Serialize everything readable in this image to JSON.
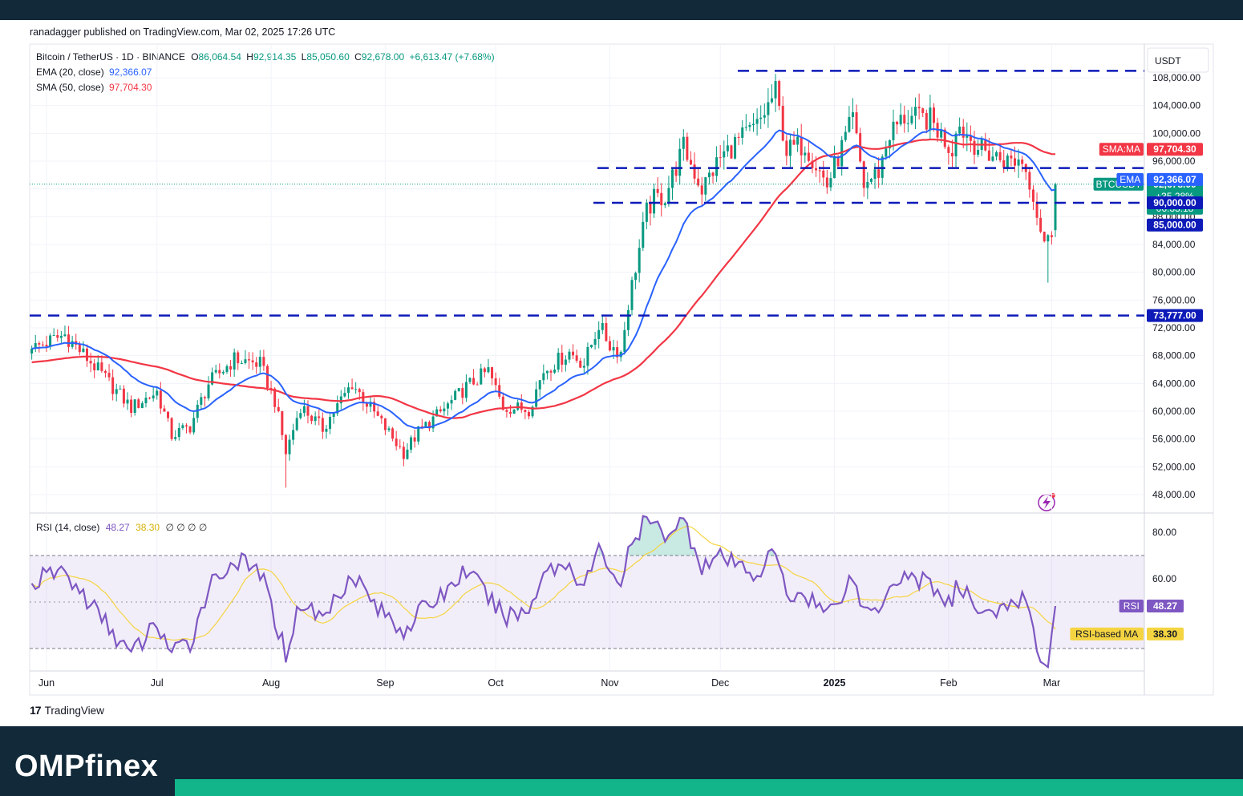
{
  "header": {
    "published": "ranadagger published on TradingView.com, Mar 02, 2025 17:26 UTC"
  },
  "legend": {
    "symbol": "Bitcoin / TetherUS · 1D · BINANCE",
    "o_label": "O",
    "o_value": "86,064.54",
    "h_label": "H",
    "h_value": "92,914.35",
    "l_label": "L",
    "l_value": "85,050.60",
    "c_label": "C",
    "c_value": "92,678.00",
    "change": "+6,613.47 (+7.68%)",
    "ema_label": "EMA (20, close)",
    "ema_value": "92,366.07",
    "sma_label": "SMA (50, close)",
    "sma_value": "97,704.30"
  },
  "rsi_legend": {
    "label": "RSI (14, close)",
    "value": "48.27",
    "ma_value": "38.30",
    "extras": "∅ ∅ ∅ ∅"
  },
  "currency": "USDT",
  "footer": {
    "tradingview": "TradingView"
  },
  "brand": {
    "name": "OMPfinex"
  },
  "colors": {
    "up": "#089981",
    "down": "#f23645",
    "ema": "#2962ff",
    "sma": "#f23645",
    "rsi": "#7e57c2",
    "rsi_ma": "#f5d442",
    "level_line": "#0d1ab8",
    "header_bg": "#112938",
    "brand_green": "#12b58a"
  },
  "chart_data": [
    {
      "type": "candlestick",
      "title": "Bitcoin / TetherUS · 1D · BINANCE",
      "ylim": [
        45000,
        110000
      ],
      "y_ticks": [
        "108,000.00",
        "104,000.00",
        "100,000.00",
        "96,000.00",
        "92,000.00",
        "88,000.00",
        "84,000.00",
        "80,000.00",
        "76,000.00",
        "72,000.00",
        "68,000.00",
        "64,000.00",
        "60,000.00",
        "56,000.00",
        "52,000.00",
        "48,000.00"
      ],
      "y_tick_values": [
        108000,
        104000,
        100000,
        96000,
        92000,
        88000,
        84000,
        80000,
        76000,
        72000,
        68000,
        64000,
        60000,
        56000,
        52000,
        48000
      ],
      "x_ticks": [
        "Jun",
        "Jul",
        "Aug",
        "Sep",
        "Oct",
        "Nov",
        "Dec",
        "2025",
        "Feb",
        "Mar"
      ],
      "close_anchors": [
        {
          "date": "2024-05-28",
          "close": 69000
        },
        {
          "date": "2024-06-06",
          "close": 71000
        },
        {
          "date": "2024-06-14",
          "close": 66500
        },
        {
          "date": "2024-06-24",
          "close": 60500
        },
        {
          "date": "2024-07-01",
          "close": 62800
        },
        {
          "date": "2024-07-05",
          "close": 56500
        },
        {
          "date": "2024-07-10",
          "close": 57800
        },
        {
          "date": "2024-07-15",
          "close": 64000
        },
        {
          "date": "2024-07-22",
          "close": 67500
        },
        {
          "date": "2024-07-29",
          "close": 66800
        },
        {
          "date": "2024-08-02",
          "close": 61500
        },
        {
          "date": "2024-08-05",
          "close": 54000
        },
        {
          "date": "2024-08-09",
          "close": 60800
        },
        {
          "date": "2024-08-15",
          "close": 57500
        },
        {
          "date": "2024-08-23",
          "close": 64000
        },
        {
          "date": "2024-08-30",
          "close": 59000
        },
        {
          "date": "2024-09-06",
          "close": 54000
        },
        {
          "date": "2024-09-10",
          "close": 57000
        },
        {
          "date": "2024-09-17",
          "close": 60300
        },
        {
          "date": "2024-09-23",
          "close": 63500
        },
        {
          "date": "2024-09-29",
          "close": 65800
        },
        {
          "date": "2024-10-03",
          "close": 60600
        },
        {
          "date": "2024-10-10",
          "close": 60300
        },
        {
          "date": "2024-10-14",
          "close": 65800
        },
        {
          "date": "2024-10-21",
          "close": 68500
        },
        {
          "date": "2024-10-25",
          "close": 66800
        },
        {
          "date": "2024-10-29",
          "close": 72500
        },
        {
          "date": "2024-11-01",
          "close": 69500
        },
        {
          "date": "2024-11-04",
          "close": 68500
        },
        {
          "date": "2024-11-06",
          "close": 75500
        },
        {
          "date": "2024-11-11",
          "close": 88700
        },
        {
          "date": "2024-11-13",
          "close": 90500
        },
        {
          "date": "2024-11-16",
          "close": 91000
        },
        {
          "date": "2024-11-21",
          "close": 98000
        },
        {
          "date": "2024-11-26",
          "close": 92000
        },
        {
          "date": "2024-12-01",
          "close": 96500
        },
        {
          "date": "2024-12-05",
          "close": 98500
        },
        {
          "date": "2024-12-11",
          "close": 101000
        },
        {
          "date": "2024-12-16",
          "close": 106000
        },
        {
          "date": "2024-12-19",
          "close": 97500
        },
        {
          "date": "2024-12-24",
          "close": 98500
        },
        {
          "date": "2024-12-30",
          "close": 92500
        },
        {
          "date": "2025-01-06",
          "close": 102000
        },
        {
          "date": "2025-01-09",
          "close": 92500
        },
        {
          "date": "2025-01-13",
          "close": 94500
        },
        {
          "date": "2025-01-16",
          "close": 100000
        },
        {
          "date": "2025-01-20",
          "close": 102300
        },
        {
          "date": "2025-01-27",
          "close": 102000
        },
        {
          "date": "2025-02-02",
          "close": 97500
        },
        {
          "date": "2025-02-03",
          "close": 101500
        },
        {
          "date": "2025-02-10",
          "close": 97500
        },
        {
          "date": "2025-02-17",
          "close": 96000
        },
        {
          "date": "2025-02-21",
          "close": 96200
        },
        {
          "date": "2025-02-24",
          "close": 91500
        },
        {
          "date": "2025-02-25",
          "close": 88500
        },
        {
          "date": "2025-02-27",
          "close": 84500
        },
        {
          "date": "2025-02-28",
          "close": 84500
        },
        {
          "date": "2025-03-01",
          "close": 86064.54
        },
        {
          "date": "2025-03-02",
          "close": 92678.0
        }
      ],
      "last_candle": {
        "date": "2025-03-02",
        "open": 86064.54,
        "high": 92914.35,
        "low": 85050.6,
        "close": 92678.0
      },
      "series": [
        {
          "name": "EMA (20, close)",
          "last": 92366.07
        },
        {
          "name": "SMA (50, close)",
          "last": 97704.3
        }
      ],
      "levels": [
        {
          "value": 109000
        },
        {
          "value": 95000
        },
        {
          "value": 90000
        },
        {
          "value": 73777
        }
      ],
      "price_labels": [
        {
          "label": "SMA:MA",
          "value": "97,704.30",
          "price": 97704.3
        },
        {
          "label": "BTCUSDT",
          "value": "92,678.00",
          "price": 92678.0,
          "change": "+35.28%",
          "countdown": "06:33:18"
        },
        {
          "label": "EMA",
          "value": "92,366.07",
          "price": 92366.07
        },
        {
          "label": "",
          "value": "90,000.00",
          "price": 90000
        },
        {
          "label": "",
          "value": "85,000.00",
          "price": 85000
        },
        {
          "label": "",
          "value": "73,777.00",
          "price": 73777
        }
      ]
    },
    {
      "type": "line",
      "title": "RSI (14, close)",
      "ylim": [
        20,
        90
      ],
      "bands": [
        30,
        70
      ],
      "y_ticks": [
        "80.00",
        "60.00"
      ],
      "y_tick_values": [
        80,
        60
      ],
      "series": [
        {
          "name": "RSI",
          "last": 48.27
        },
        {
          "name": "RSI-based MA",
          "last": 38.3
        }
      ],
      "anchors": [
        {
          "date": "2024-05-28",
          "rsi": 58
        },
        {
          "date": "2024-06-05",
          "rsi": 64
        },
        {
          "date": "2024-06-13",
          "rsi": 49
        },
        {
          "date": "2024-06-24",
          "rsi": 27
        },
        {
          "date": "2024-07-01",
          "rsi": 41
        },
        {
          "date": "2024-07-05",
          "rsi": 28
        },
        {
          "date": "2024-07-10",
          "rsi": 32
        },
        {
          "date": "2024-07-15",
          "rsi": 57
        },
        {
          "date": "2024-07-22",
          "rsi": 68
        },
        {
          "date": "2024-07-29",
          "rsi": 63
        },
        {
          "date": "2024-08-05",
          "rsi": 28
        },
        {
          "date": "2024-08-09",
          "rsi": 50
        },
        {
          "date": "2024-08-15",
          "rsi": 43
        },
        {
          "date": "2024-08-23",
          "rsi": 63
        },
        {
          "date": "2024-08-30",
          "rsi": 47
        },
        {
          "date": "2024-09-06",
          "rsi": 38
        },
        {
          "date": "2024-09-10",
          "rsi": 45
        },
        {
          "date": "2024-09-17",
          "rsi": 54
        },
        {
          "date": "2024-09-23",
          "rsi": 64
        },
        {
          "date": "2024-10-03",
          "rsi": 44
        },
        {
          "date": "2024-10-10",
          "rsi": 46
        },
        {
          "date": "2024-10-14",
          "rsi": 64
        },
        {
          "date": "2024-10-21",
          "rsi": 66
        },
        {
          "date": "2024-10-25",
          "rsi": 57
        },
        {
          "date": "2024-10-29",
          "rsi": 72
        },
        {
          "date": "2024-11-04",
          "rsi": 58
        },
        {
          "date": "2024-11-06",
          "rsi": 70
        },
        {
          "date": "2024-11-11",
          "rsi": 86
        },
        {
          "date": "2024-11-13",
          "rsi": 82
        },
        {
          "date": "2024-11-16",
          "rsi": 80
        },
        {
          "date": "2024-11-21",
          "rsi": 85
        },
        {
          "date": "2024-11-26",
          "rsi": 66
        },
        {
          "date": "2024-12-01",
          "rsi": 69
        },
        {
          "date": "2024-12-05",
          "rsi": 66
        },
        {
          "date": "2024-12-11",
          "rsi": 62
        },
        {
          "date": "2024-12-16",
          "rsi": 72
        },
        {
          "date": "2024-12-19",
          "rsi": 52
        },
        {
          "date": "2024-12-24",
          "rsi": 54
        },
        {
          "date": "2024-12-30",
          "rsi": 45
        },
        {
          "date": "2025-01-06",
          "rsi": 61
        },
        {
          "date": "2025-01-09",
          "rsi": 46
        },
        {
          "date": "2025-01-13",
          "rsi": 48
        },
        {
          "date": "2025-01-16",
          "rsi": 58
        },
        {
          "date": "2025-01-20",
          "rsi": 62
        },
        {
          "date": "2025-01-27",
          "rsi": 58
        },
        {
          "date": "2025-02-02",
          "rsi": 48
        },
        {
          "date": "2025-02-03",
          "rsi": 56
        },
        {
          "date": "2025-02-10",
          "rsi": 47
        },
        {
          "date": "2025-02-17",
          "rsi": 46
        },
        {
          "date": "2025-02-21",
          "rsi": 52
        },
        {
          "date": "2025-02-24",
          "rsi": 39
        },
        {
          "date": "2025-02-25",
          "rsi": 31
        },
        {
          "date": "2025-02-27",
          "rsi": 23
        },
        {
          "date": "2025-02-28",
          "rsi": 24
        },
        {
          "date": "2025-03-01",
          "rsi": 33
        },
        {
          "date": "2025-03-02",
          "rsi": 48.27
        }
      ],
      "price_labels": [
        {
          "label": "RSI",
          "value": "48.27",
          "price": 48.27
        },
        {
          "label": "RSI-based MA",
          "value": "38.30",
          "price": 38.3
        }
      ]
    }
  ]
}
